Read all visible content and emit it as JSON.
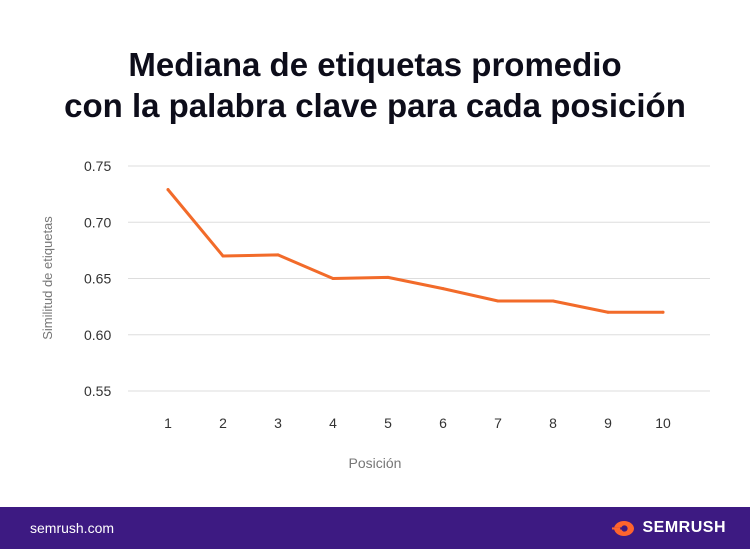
{
  "title_lines": [
    "Mediana de etiquetas promedio",
    "con la palabra clave para cada posición"
  ],
  "footer": {
    "site": "semrush.com",
    "brand": "SEMRUSH"
  },
  "colors": {
    "line": "#f26b2a",
    "footer_bg": "#3d1a82",
    "grid": "#dddddd",
    "logo": "#ff642d"
  },
  "chart_data": {
    "type": "line",
    "title": "Mediana de etiquetas promedio con la palabra clave para cada posición",
    "xlabel": "Posición",
    "ylabel": "Similitud de etiquetas",
    "x": [
      1,
      2,
      3,
      4,
      5,
      6,
      7,
      8,
      9,
      10
    ],
    "series": [
      {
        "values": [
          0.729,
          0.67,
          0.671,
          0.65,
          0.651,
          0.641,
          0.63,
          0.63,
          0.62,
          0.62
        ]
      }
    ],
    "xticks": [
      "1",
      "2",
      "3",
      "4",
      "5",
      "6",
      "7",
      "8",
      "9",
      "10"
    ],
    "yticks": [
      "0.75",
      "0.70",
      "0.65",
      "0.60",
      "0.55"
    ],
    "ylim": [
      0.55,
      0.75
    ],
    "grid": "horizontal"
  }
}
